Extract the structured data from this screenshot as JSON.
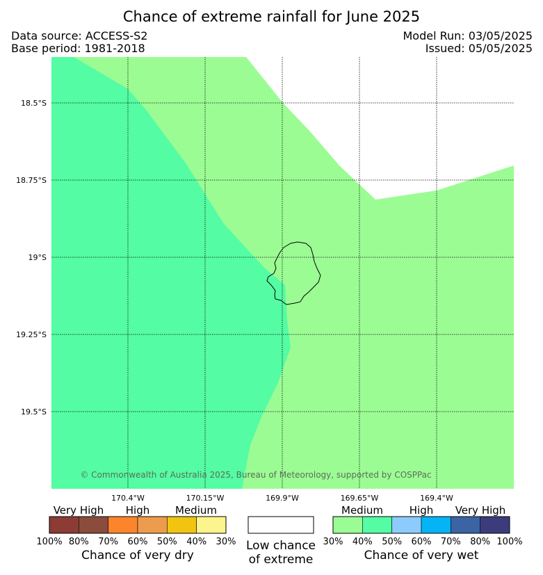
{
  "header": {
    "title": "Chance of extreme rainfall for June 2025",
    "data_source": "Data source: ACCESS-S2",
    "base_period": "Base period: 1981-2018",
    "model_run": "Model Run: 03/05/2025",
    "issued": "Issued: 05/05/2025"
  },
  "map": {
    "lat_labels": [
      "18.5°S",
      "18.75°S",
      "19°S",
      "19.25°S",
      "19.5°S"
    ],
    "lon_labels": [
      "170.4°W",
      "170.15°W",
      "169.9°W",
      "169.65°W",
      "169.4°W"
    ],
    "copyright": "© Commonwealth of Australia 2025, Bureau of Meteorology, supported by COSPPac",
    "colors": {
      "wet_medium_30_40": "#9cfc94",
      "wet_medium_40_50": "#54fca4",
      "background": "#ffffff"
    }
  },
  "legend": {
    "dry": {
      "categories": [
        "Very High",
        "High",
        "Medium"
      ],
      "colors": [
        "#8c3c34",
        "#8c4c3c",
        "#fc842c",
        "#ec9c4c",
        "#f0c410",
        "#fcf48c"
      ],
      "ticks": [
        "100%",
        "80%",
        "70%",
        "60%",
        "50%",
        "40%",
        "30%"
      ],
      "caption": "Chance of very dry"
    },
    "low": {
      "caption_line1": "Low chance",
      "caption_line2": "of extreme"
    },
    "wet": {
      "categories": [
        "Medium",
        "High",
        "Very High"
      ],
      "colors": [
        "#9cfc94",
        "#54fca4",
        "#8cccfc",
        "#04b4f4",
        "#3c64a4",
        "#3c3c7c"
      ],
      "ticks": [
        "30%",
        "40%",
        "50%",
        "60%",
        "70%",
        "80%",
        "100%"
      ],
      "caption": "Chance of very wet"
    }
  }
}
